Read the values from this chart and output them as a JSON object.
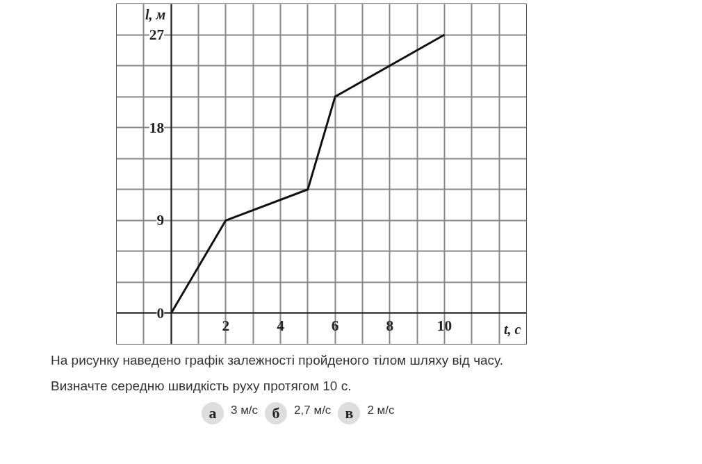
{
  "chart_data": {
    "type": "line",
    "x": [
      0,
      2,
      5,
      6,
      10
    ],
    "series": [
      {
        "color": "#111111",
        "values": [
          0,
          9,
          12,
          21,
          27
        ]
      }
    ],
    "xlabel": "t, с",
    "ylabel": "l, м",
    "xlim": [
      -2,
      13
    ],
    "ylim": [
      -3,
      30
    ],
    "xticks": [
      {
        "value": -2,
        "label": null
      },
      {
        "value": -1,
        "label": null
      },
      {
        "value": 0,
        "label": null
      },
      {
        "value": 1,
        "label": null
      },
      2,
      {
        "value": 3,
        "label": null
      },
      4,
      {
        "value": 5,
        "label": null
      },
      6,
      {
        "value": 7,
        "label": null
      },
      8,
      {
        "value": 9,
        "label": null
      },
      10,
      {
        "value": 11,
        "label": null
      },
      {
        "value": 12,
        "label": null
      },
      {
        "value": 13,
        "label": null
      }
    ],
    "yticks": [
      {
        "value": -3,
        "label": null
      },
      0,
      {
        "value": 3,
        "label": null
      },
      {
        "value": 6,
        "label": null
      },
      9,
      {
        "value": 12,
        "label": null
      },
      {
        "value": 15,
        "label": null
      },
      18,
      {
        "value": 21,
        "label": null
      },
      {
        "value": 24,
        "label": null
      },
      27,
      {
        "value": 30,
        "label": null
      }
    ],
    "grid": true,
    "marker": "none",
    "line_style": "solid",
    "annotations": [
      "На рисунку наведено графік залежності пройденого тілом шляху від часу.",
      "Визначте середню швидкість руху протягом 10 с.",
      "а",
      "3 м/с",
      "б",
      "2,7 м/с",
      "в",
      "2 м/с"
    ]
  }
}
